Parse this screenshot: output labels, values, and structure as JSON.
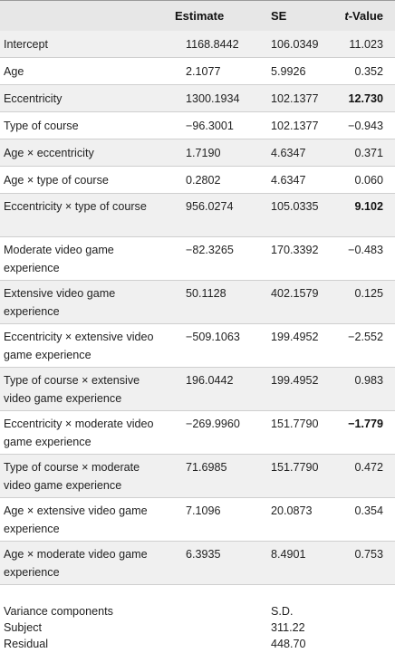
{
  "header": {
    "estimate": "Estimate",
    "se": "SE",
    "tvalue_italic": "t",
    "tvalue_rest": "-Value"
  },
  "rows": [
    {
      "label": "Intercept",
      "estimate": "1168.8442",
      "se": "106.0349",
      "tvalue": "11.023",
      "bold": false
    },
    {
      "label": "Age",
      "estimate": "2.1077",
      "se": "5.9926",
      "tvalue": "0.352",
      "bold": false
    },
    {
      "label": "Eccentricity",
      "estimate": "1300.1934",
      "se": "102.1377",
      "tvalue": "12.730",
      "bold": true
    },
    {
      "label": "Type of course",
      "estimate": "−96.3001",
      "se": "102.1377",
      "tvalue": "−0.943",
      "bold": false
    },
    {
      "label": "Age × eccentricity",
      "estimate": "1.7190",
      "se": "4.6347",
      "tvalue": "0.371",
      "bold": false
    },
    {
      "label": "Age × type of course",
      "estimate": "0.2802",
      "se": "4.6347",
      "tvalue": "0.060",
      "bold": false
    },
    {
      "label": "Eccentricity × type of course",
      "estimate": "956.0274",
      "se": "105.0335",
      "tvalue": "9.102",
      "bold": true
    },
    {
      "label": "Moderate video game experience",
      "estimate": "−82.3265",
      "se": "170.3392",
      "tvalue": "−0.483",
      "bold": false
    },
    {
      "label": "Extensive video game experience",
      "estimate": "50.1128",
      "se": "402.1579",
      "tvalue": "0.125",
      "bold": false
    },
    {
      "label": "Eccentricity × extensive video game experience",
      "estimate": "−509.1063",
      "se": "199.4952",
      "tvalue": "−2.552",
      "bold": false
    },
    {
      "label": "Type of course × extensive video game experience",
      "estimate": "196.0442",
      "se": "199.4952",
      "tvalue": "0.983",
      "bold": false
    },
    {
      "label": "Eccentricity × moderate video game experience",
      "estimate": "−269.9960",
      "se": "151.7790",
      "tvalue": "−1.779",
      "bold": true
    },
    {
      "label": "Type of course × moderate video game experience",
      "estimate": "71.6985",
      "se": "151.7790",
      "tvalue": "0.472",
      "bold": false
    },
    {
      "label": "Age × extensive video game experience",
      "estimate": "7.1096",
      "se": "20.0873",
      "tvalue": "0.354",
      "bold": false
    },
    {
      "label": "Age × moderate video game experience",
      "estimate": "6.3935",
      "se": "8.4901",
      "tvalue": "0.753",
      "bold": false
    }
  ],
  "variance": {
    "title": "Variance components",
    "sd_label": "S.D.",
    "subject_label": "Subject",
    "subject_value": "311.22",
    "residual_label": "Residual",
    "residual_value": "448.70"
  }
}
